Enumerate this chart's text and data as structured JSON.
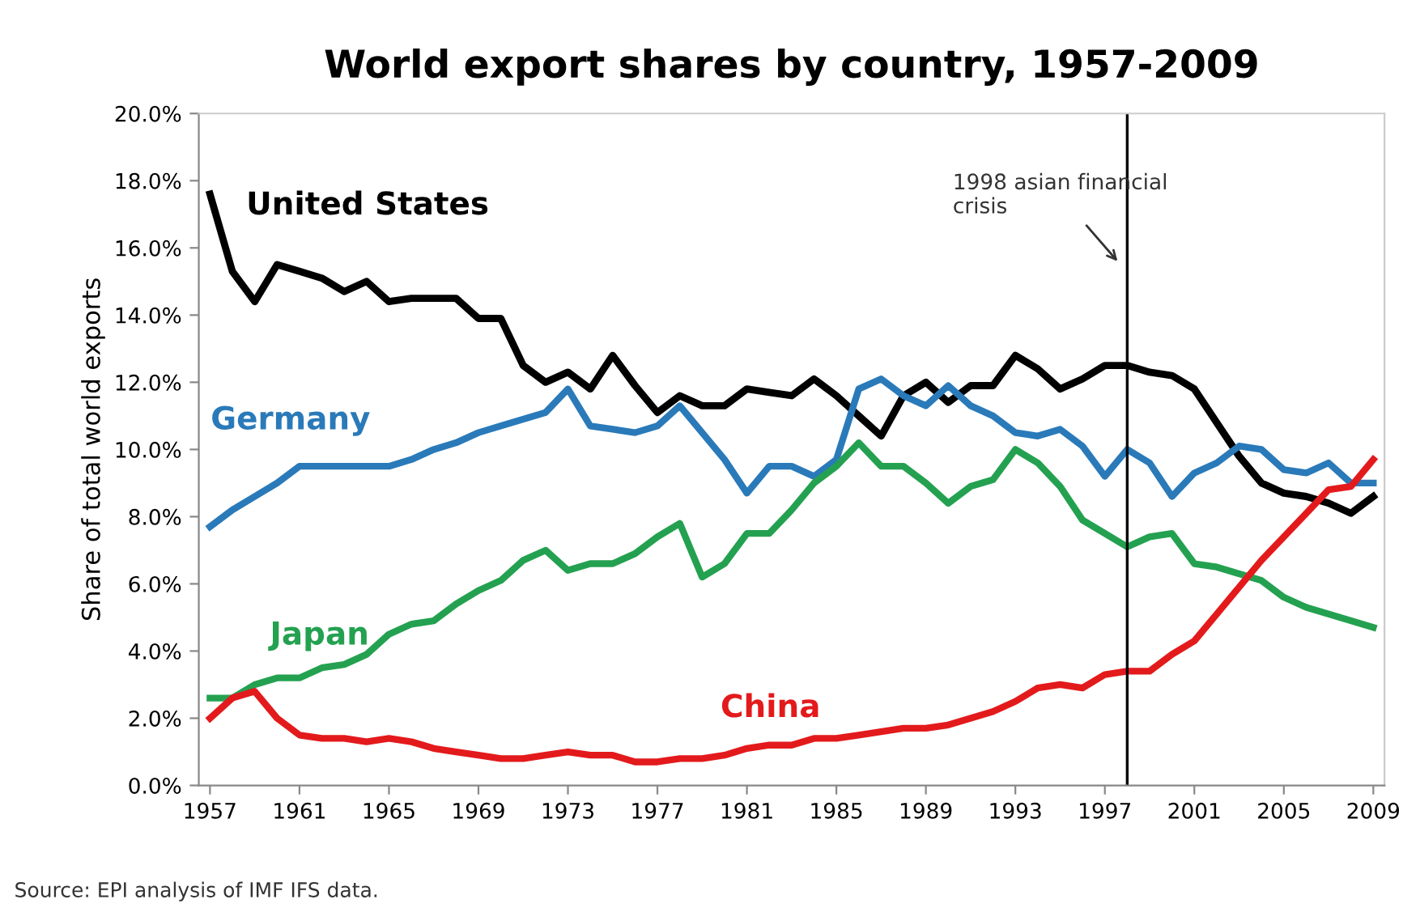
{
  "chart_data": {
    "type": "line",
    "title": "World export shares by country, 1957-2009",
    "ylabel": "Share of total world exports",
    "x": [
      1957,
      1958,
      1959,
      1960,
      1961,
      1962,
      1963,
      1964,
      1965,
      1966,
      1967,
      1968,
      1969,
      1970,
      1971,
      1972,
      1973,
      1974,
      1975,
      1976,
      1977,
      1978,
      1979,
      1980,
      1981,
      1982,
      1983,
      1984,
      1985,
      1986,
      1987,
      1988,
      1989,
      1990,
      1991,
      1992,
      1993,
      1994,
      1995,
      1996,
      1997,
      1998,
      1999,
      2000,
      2001,
      2002,
      2003,
      2004,
      2005,
      2006,
      2007,
      2008,
      2009
    ],
    "series": [
      {
        "name": "United States",
        "color": "#000000",
        "values": [
          17.6,
          15.3,
          14.4,
          15.5,
          15.3,
          15.1,
          14.7,
          15.0,
          14.4,
          14.5,
          14.5,
          14.5,
          13.9,
          13.9,
          12.5,
          12.0,
          12.3,
          11.8,
          12.8,
          11.9,
          11.1,
          11.6,
          11.3,
          11.3,
          11.8,
          11.7,
          11.6,
          12.1,
          11.6,
          11.0,
          10.4,
          11.6,
          12.0,
          11.4,
          11.9,
          11.9,
          12.8,
          12.4,
          11.8,
          12.1,
          12.5,
          12.5,
          12.3,
          12.2,
          11.8,
          10.8,
          9.8,
          9.0,
          8.7,
          8.6,
          8.4,
          8.1,
          8.6
        ]
      },
      {
        "name": "Germany",
        "color": "#2a7ab9",
        "values": [
          7.7,
          8.2,
          8.6,
          9.0,
          9.5,
          9.5,
          9.5,
          9.5,
          9.5,
          9.7,
          10.0,
          10.2,
          10.5,
          10.7,
          10.9,
          11.1,
          11.8,
          10.7,
          10.6,
          10.5,
          10.7,
          11.3,
          10.5,
          9.7,
          8.7,
          9.5,
          9.5,
          9.2,
          9.7,
          11.8,
          12.1,
          11.6,
          11.3,
          11.9,
          11.3,
          11.0,
          10.5,
          10.4,
          10.6,
          10.1,
          9.2,
          10.0,
          9.6,
          8.6,
          9.3,
          9.6,
          10.1,
          10.0,
          9.4,
          9.3,
          9.6,
          9.0,
          9.0
        ]
      },
      {
        "name": "Japan",
        "color": "#24a150",
        "values": [
          2.6,
          2.6,
          3.0,
          3.2,
          3.2,
          3.5,
          3.6,
          3.9,
          4.5,
          4.8,
          4.9,
          5.4,
          5.8,
          6.1,
          6.7,
          7.0,
          6.4,
          6.6,
          6.6,
          6.9,
          7.4,
          7.8,
          6.2,
          6.6,
          7.5,
          7.5,
          8.2,
          9.0,
          9.5,
          10.2,
          9.5,
          9.5,
          9.0,
          8.4,
          8.9,
          9.1,
          10.0,
          9.6,
          8.9,
          7.9,
          7.5,
          7.1,
          7.4,
          7.5,
          6.6,
          6.5,
          6.3,
          6.1,
          5.6,
          5.3,
          5.1,
          4.9,
          4.7
        ]
      },
      {
        "name": "China",
        "color": "#e31a1c",
        "values": [
          2.0,
          2.6,
          2.8,
          2.0,
          1.5,
          1.4,
          1.4,
          1.3,
          1.4,
          1.3,
          1.1,
          1.0,
          0.9,
          0.8,
          0.8,
          0.9,
          1.0,
          0.9,
          0.9,
          0.7,
          0.7,
          0.8,
          0.8,
          0.9,
          1.1,
          1.2,
          1.2,
          1.4,
          1.4,
          1.5,
          1.6,
          1.7,
          1.7,
          1.8,
          2.0,
          2.2,
          2.5,
          2.9,
          3.0,
          2.9,
          3.3,
          3.4,
          3.4,
          3.9,
          4.3,
          5.1,
          5.9,
          6.7,
          7.4,
          8.1,
          8.8,
          8.9,
          9.7
        ]
      }
    ],
    "xlim": [
      1956.5,
      2009.5
    ],
    "xticks": [
      1957,
      1961,
      1965,
      1969,
      1973,
      1977,
      1981,
      1985,
      1989,
      1993,
      1997,
      2001,
      2005,
      2009
    ],
    "ylim": [
      0,
      20
    ],
    "yticks": [
      {
        "value": 0,
        "label": "0.0%"
      },
      {
        "value": 2,
        "label": "2.0%"
      },
      {
        "value": 4,
        "label": "4.0%"
      },
      {
        "value": 6,
        "label": "6.0%"
      },
      {
        "value": 8,
        "label": "8.0%"
      },
      {
        "value": 10,
        "label": "10.0%"
      },
      {
        "value": 12,
        "label": "12.0%"
      },
      {
        "value": 14,
        "label": "14.0%"
      },
      {
        "value": 16,
        "label": "16.0%"
      },
      {
        "value": 18,
        "label": "18.0%"
      },
      {
        "value": 20,
        "label": "20.0%"
      }
    ],
    "ref_lines": [
      {
        "axis": "x",
        "value": 1998,
        "color": "#000000"
      }
    ],
    "annotations": [
      {
        "text": "1998 asian financial\ncrisis",
        "x": 1998,
        "y": 15.5
      },
      "Source: EPI analysis of IMF IFS data."
    ],
    "grid": false,
    "legend": false,
    "marker": "none",
    "line_style": "solid"
  }
}
